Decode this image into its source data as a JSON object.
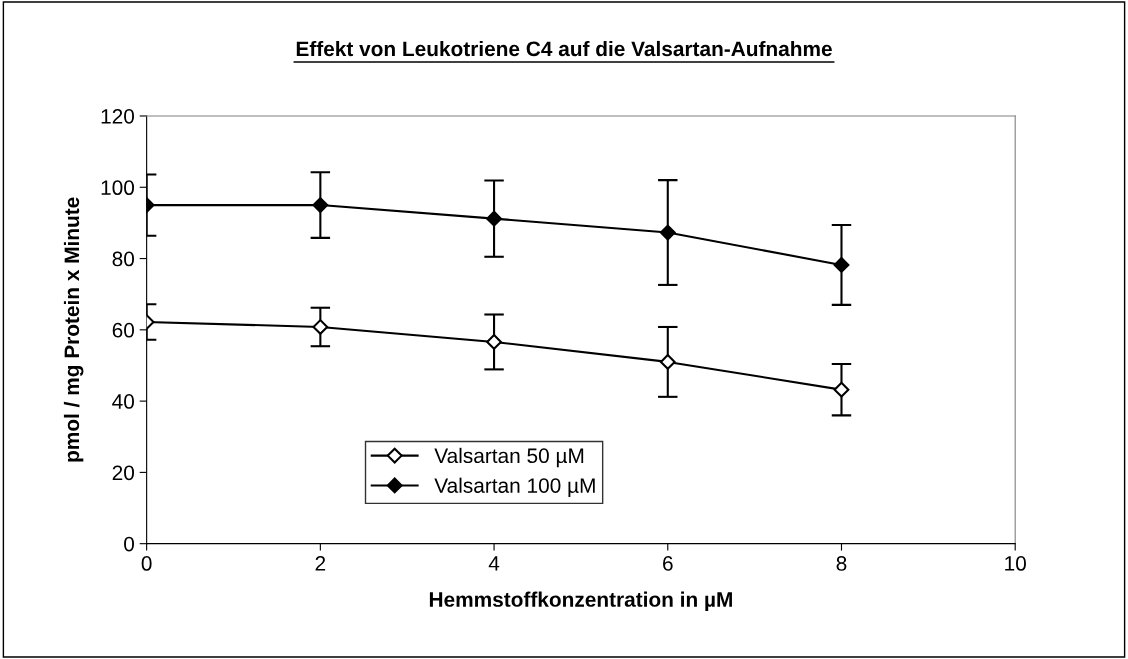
{
  "chart_data": {
    "type": "line",
    "title": "Effekt von Leukotriene C4 auf die Valsartan-Aufnahme",
    "xlabel": "Hemmstoffkonzentration in µM",
    "ylabel": "pmol / mg Protein x Minute",
    "x": [
      0,
      2,
      4,
      6,
      8
    ],
    "series": [
      {
        "name": "Valsartan 50 µM",
        "color": "#000000",
        "marker": "diamond_open",
        "values": [
          62.2,
          60.8,
          56.6,
          51,
          43.2
        ],
        "errors": [
          5,
          5.4,
          7.7,
          9.8,
          7.2
        ]
      },
      {
        "name": "Valsartan 100 µM",
        "color": "#000000",
        "marker": "diamond",
        "values": [
          95,
          95,
          91.2,
          87.3,
          78.2
        ],
        "errors": [
          8.6,
          9.2,
          10.7,
          14.7,
          11.2
        ]
      }
    ],
    "xlim": [
      0,
      10
    ],
    "xticks": [
      0,
      2,
      4,
      6,
      8,
      10
    ],
    "ylim": [
      0,
      120
    ],
    "yticks": [
      0,
      20,
      40,
      60,
      80,
      100,
      120
    ],
    "grid": false,
    "legend": "bottom left",
    "line_style": "solid"
  }
}
